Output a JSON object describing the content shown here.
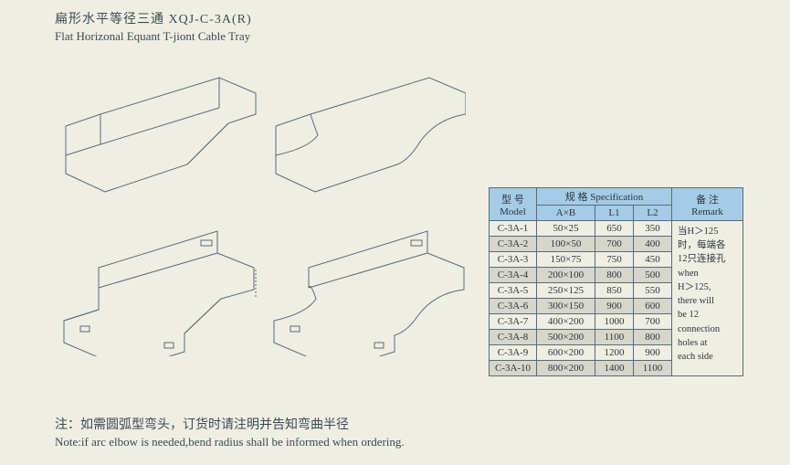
{
  "title": {
    "cn": "扁形水平等径三通 XQJ-C-3A(R)",
    "en": "Flat Horizonal Equant T-jiont Cable Tray"
  },
  "table": {
    "header": {
      "model_cn": "型 号",
      "model_en": "Model",
      "spec_cn": "规 格",
      "spec_en": "Specification",
      "ab": "A×B",
      "l1": "L1",
      "l2": "L2",
      "remark_cn": "备 注",
      "remark_en": "Remark"
    },
    "rows": [
      {
        "model": "C-3A-1",
        "ab": "50×25",
        "l1": "650",
        "l2": "350"
      },
      {
        "model": "C-3A-2",
        "ab": "100×50",
        "l1": "700",
        "l2": "400"
      },
      {
        "model": "C-3A-3",
        "ab": "150×75",
        "l1": "750",
        "l2": "450"
      },
      {
        "model": "C-3A-4",
        "ab": "200×100",
        "l1": "800",
        "l2": "500"
      },
      {
        "model": "C-3A-5",
        "ab": "250×125",
        "l1": "850",
        "l2": "550"
      },
      {
        "model": "C-3A-6",
        "ab": "300×150",
        "l1": "900",
        "l2": "600"
      },
      {
        "model": "C-3A-7",
        "ab": "400×200",
        "l1": "1000",
        "l2": "700"
      },
      {
        "model": "C-3A-8",
        "ab": "500×200",
        "l1": "1100",
        "l2": "800"
      },
      {
        "model": "C-3A-9",
        "ab": "600×200",
        "l1": "1200",
        "l2": "900"
      },
      {
        "model": "C-3A-10",
        "ab": "800×200",
        "l1": "1400",
        "l2": "1100"
      }
    ],
    "remark_lines": [
      "当H＞125",
      "时，每端各",
      "12只连接孔",
      "when",
      "H＞125,",
      "there will",
      "be 12",
      "connection",
      "holes at",
      "each side"
    ]
  },
  "note": {
    "cn": "注：如需圆弧型弯头，订货时请注明并告知弯曲半径",
    "en": "Note:if arc elbow is needed,bend radius shall be informed when ordering."
  },
  "colors": {
    "page_bg": "#efeee2",
    "header_bg": "#a5cce6",
    "alt_row_bg": "#d7d6ca",
    "border": "#5a6a7a",
    "text": "#3b4a56"
  }
}
